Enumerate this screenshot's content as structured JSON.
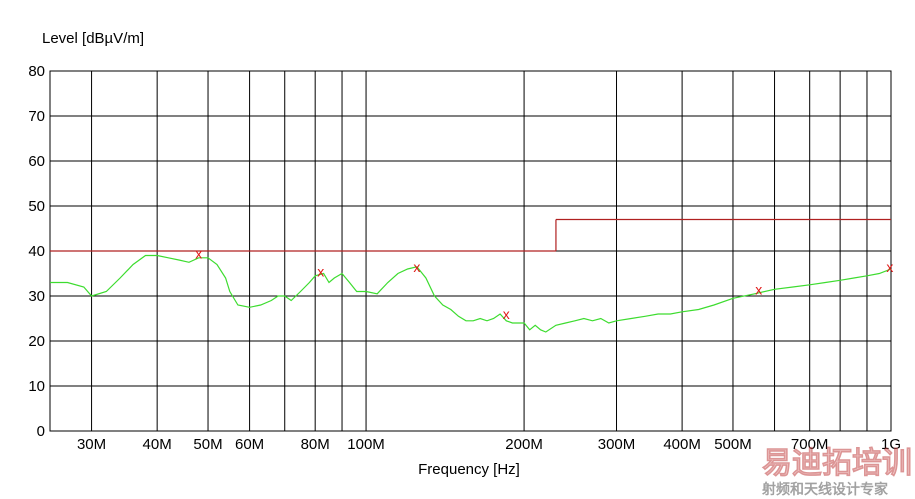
{
  "chart_data": {
    "type": "line",
    "ylabel": "Level [dBµV/m]",
    "xlabel": "Frequency [Hz]",
    "x_scale": "log",
    "xlim": [
      25,
      1000
    ],
    "ylim": [
      0,
      80
    ],
    "y_ticks": [
      0,
      10,
      20,
      30,
      40,
      50,
      60,
      70,
      80
    ],
    "x_ticks": [
      30,
      40,
      50,
      60,
      80,
      100,
      200,
      300,
      400,
      500,
      700,
      1000
    ],
    "x_tick_labels": [
      "30M",
      "40M",
      "50M",
      "60M",
      "80M",
      "100M",
      "200M",
      "300M",
      "400M",
      "500M",
      "700M",
      "1G"
    ],
    "grid_x": [
      30,
      40,
      50,
      60,
      70,
      80,
      90,
      100,
      200,
      300,
      400,
      500,
      600,
      700,
      800,
      900,
      1000
    ],
    "grid": true,
    "colors": {
      "measurement": "#3ddc2f",
      "limit": "#b02020",
      "marker": "#e01818",
      "grid": "#000000"
    },
    "series": [
      {
        "role": "measurement",
        "x": [
          25,
          27,
          29,
          30,
          32,
          34,
          36,
          38,
          40,
          42,
          44,
          46,
          48,
          50,
          52,
          54,
          55,
          57,
          60,
          63,
          66,
          68,
          70,
          72,
          75,
          78,
          80,
          83,
          85,
          87,
          90,
          93,
          96,
          100,
          105,
          110,
          115,
          120,
          125,
          130,
          135,
          140,
          145,
          150,
          155,
          160,
          165,
          170,
          175,
          180,
          185,
          190,
          195,
          200,
          205,
          210,
          215,
          220,
          230,
          240,
          250,
          260,
          270,
          280,
          290,
          300,
          320,
          340,
          360,
          380,
          400,
          430,
          460,
          500,
          550,
          600,
          650,
          700,
          750,
          800,
          850,
          900,
          950,
          1000
        ],
        "y": [
          33,
          33,
          32,
          30,
          31,
          34,
          37,
          39,
          39,
          38.5,
          38,
          37.5,
          38.5,
          38.5,
          37,
          34,
          31,
          28,
          27.5,
          28,
          29,
          30,
          30,
          29,
          31,
          33,
          34.5,
          35,
          33,
          34,
          35,
          33,
          31,
          31,
          30.5,
          33,
          35,
          36,
          36.5,
          34,
          30,
          28,
          27,
          25.5,
          24.5,
          24.5,
          25,
          24.5,
          25,
          26,
          24.5,
          24,
          24,
          24,
          22.5,
          23.5,
          22.5,
          22,
          23.5,
          24,
          24.5,
          25,
          24.5,
          25,
          24,
          24.5,
          25,
          25.5,
          26,
          26,
          26.5,
          27,
          28,
          29.5,
          30.5,
          31.5,
          32,
          32.5,
          33,
          33.5,
          34,
          34.5,
          35,
          36
        ]
      },
      {
        "role": "limit",
        "segments": [
          {
            "x": [
              25,
              230
            ],
            "y": [
              40,
              40
            ]
          },
          {
            "x": [
              230,
              230
            ],
            "y": [
              40,
              47
            ]
          },
          {
            "x": [
              230,
              1000
            ],
            "y": [
              47,
              47
            ]
          }
        ]
      }
    ],
    "markers": {
      "symbol": "x",
      "points": [
        {
          "x": 48,
          "y": 39.5
        },
        {
          "x": 82,
          "y": 35.5
        },
        {
          "x": 125,
          "y": 36.5
        },
        {
          "x": 185,
          "y": 26
        },
        {
          "x": 560,
          "y": 31.5
        },
        {
          "x": 995,
          "y": 36.5
        }
      ]
    }
  },
  "watermark": {
    "main": "易迪拓培训",
    "sub": "射频和天线设计专家"
  }
}
